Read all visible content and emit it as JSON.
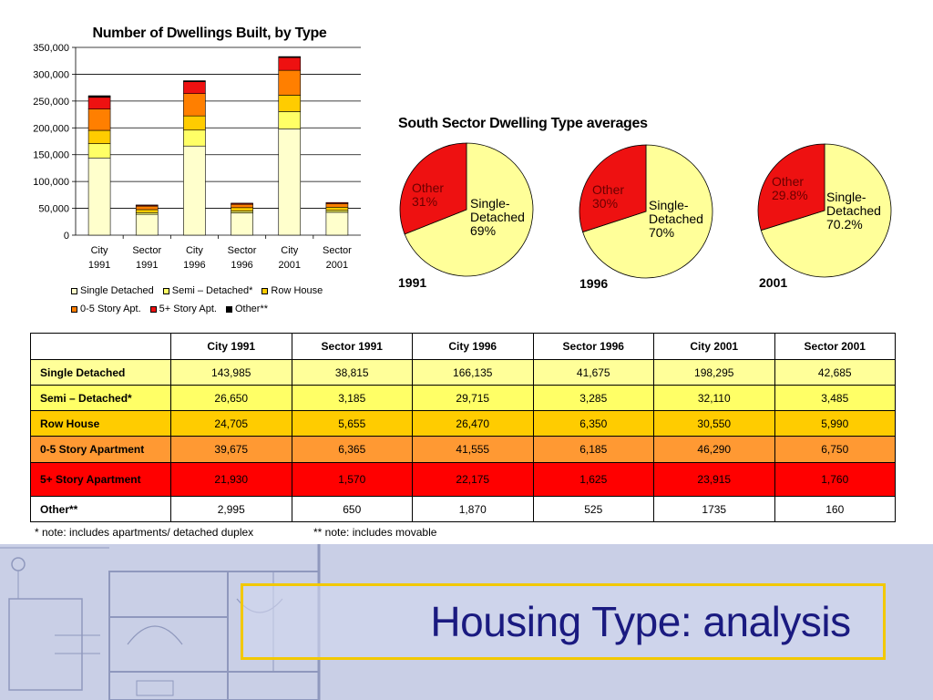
{
  "colors": {
    "single_detached": "#ffffcc",
    "semi_detached": "#ffff66",
    "row_house": "#ffcc00",
    "story_0_5": "#ff7f00",
    "story_5_plus": "#ee1111",
    "other": "#000000",
    "title_border": "#f2c800",
    "title_text": "#1a1a80"
  },
  "chart_data": [
    {
      "type": "bar",
      "stacked": true,
      "title": "Number of Dwellings Built, by Type",
      "categories": [
        [
          "City",
          "1991"
        ],
        [
          "Sector",
          "1991"
        ],
        [
          "City",
          "1996"
        ],
        [
          "Sector",
          "1996"
        ],
        [
          "City",
          "2001"
        ],
        [
          "Sector",
          "2001"
        ]
      ],
      "ylim": [
        0,
        350000
      ],
      "yticks": [
        "0",
        "50,000",
        "100,000",
        "150,000",
        "200,000",
        "250,000",
        "300,000",
        "350,000"
      ],
      "ytick_values": [
        0,
        50000,
        100000,
        150000,
        200000,
        250000,
        300000,
        350000
      ],
      "grid": true,
      "legend_position": "bottom",
      "series": [
        {
          "name": "Single Detached",
          "color_key": "single_detached",
          "values": [
            143985,
            38815,
            166135,
            41675,
            198295,
            42685
          ]
        },
        {
          "name": "Semi – Detached*",
          "color_key": "semi_detached",
          "values": [
            26650,
            3185,
            29715,
            3285,
            32110,
            3485
          ]
        },
        {
          "name": "Row  House",
          "color_key": "row_house",
          "values": [
            24705,
            5655,
            26470,
            6350,
            30550,
            5990
          ]
        },
        {
          "name": "0-5 Story Apt.",
          "color_key": "story_0_5",
          "values": [
            39675,
            6365,
            41555,
            6185,
            46290,
            6750
          ]
        },
        {
          "name": "5+ Story Apt.",
          "color_key": "story_5_plus",
          "values": [
            21930,
            1570,
            22175,
            1625,
            23915,
            1760
          ]
        },
        {
          "name": "Other**",
          "color_key": "other",
          "values": [
            2995,
            650,
            1870,
            525,
            1735,
            160
          ]
        }
      ]
    },
    {
      "type": "pie",
      "title": "South Sector Dwelling Type averages",
      "pies": [
        {
          "year": "1991",
          "slices": [
            {
              "label": "Single-Detached",
              "pct_label": "69%",
              "value": 69
            },
            {
              "label": "Other",
              "pct_label": "31%",
              "value": 31
            }
          ]
        },
        {
          "year": "1996",
          "slices": [
            {
              "label": "Single-Detached",
              "pct_label": "70%",
              "value": 70
            },
            {
              "label": "Other",
              "pct_label": "30%",
              "value": 30
            }
          ]
        },
        {
          "year": "2001",
          "slices": [
            {
              "label": "Single-Detached",
              "pct_label": "70.2%",
              "value": 70.2
            },
            {
              "label": "Other",
              "pct_label": "29.8%",
              "value": 29.8
            }
          ]
        }
      ]
    },
    {
      "type": "table",
      "header": [
        "",
        "City 1991",
        "Sector 1991",
        "City 1996",
        "Sector 1996",
        "City 2001",
        "Sector 2001"
      ],
      "rows": [
        [
          "Single Detached",
          "143,985",
          "38,815",
          "166,135",
          "41,675",
          "198,295",
          "42,685"
        ],
        [
          "Semi – Detached*",
          "26,650",
          "3,185",
          "29,715",
          "3,285",
          "32,110",
          "3,485"
        ],
        [
          "Row House",
          "24,705",
          "5,655",
          "26,470",
          "6,350",
          "30,550",
          "5,990"
        ],
        [
          "0-5 Story Apartment",
          "39,675",
          "6,365",
          "41,555",
          "6,185",
          "46,290",
          "6,750"
        ],
        [
          "5+ Story Apartment",
          "21,930",
          "1,570",
          "22,175",
          "1,625",
          "23,915",
          "1,760"
        ],
        [
          "Other**",
          "2,995",
          "650",
          "1,870",
          "525",
          "1735",
          "160"
        ]
      ]
    }
  ],
  "notes": {
    "note1": "* note: includes apartments/ detached duplex",
    "note2": "** note: includes movable"
  },
  "slide": {
    "title": "Housing Type: analysis"
  }
}
